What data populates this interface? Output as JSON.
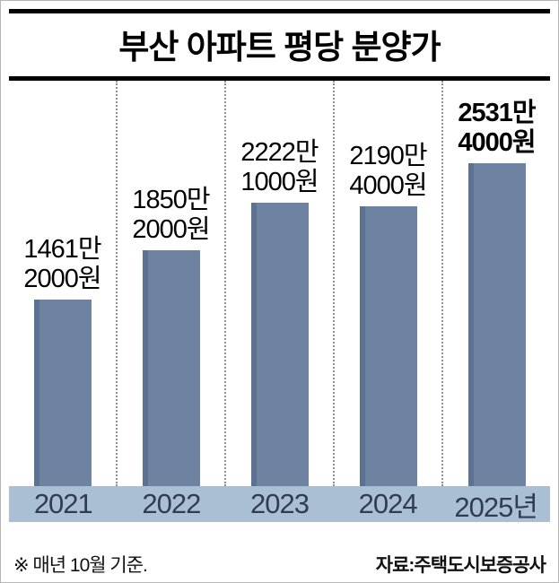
{
  "title": "부산 아파트 평당 분양가",
  "chart_data": {
    "type": "bar",
    "title": "부산 아파트 평당 분양가",
    "categories": [
      "2021",
      "2022",
      "2023",
      "2024",
      "2025년"
    ],
    "values": [
      1461.2,
      1850.2,
      2222.1,
      2190.4,
      2531.4
    ],
    "value_labels": [
      [
        "1461만",
        "2000원"
      ],
      [
        "1850만",
        "2000원"
      ],
      [
        "2222만",
        "1000원"
      ],
      [
        "2190만",
        "4000원"
      ],
      [
        "2531만",
        "4000원"
      ]
    ],
    "ylim": [
      0,
      2531.4
    ],
    "legend": "none",
    "grid": "dotted vertical separators between columns"
  },
  "footer": {
    "note": "※ 매년 10월 기준.",
    "source": "자료:주택도시보증공사"
  },
  "colors": {
    "bar": "#6e83a1",
    "bar_shade": "#5d7290",
    "year_band_bg": "#aabfd3",
    "year_text": "#2e3d54",
    "title_rule": "#000000",
    "separator": "#8f8f8f"
  }
}
